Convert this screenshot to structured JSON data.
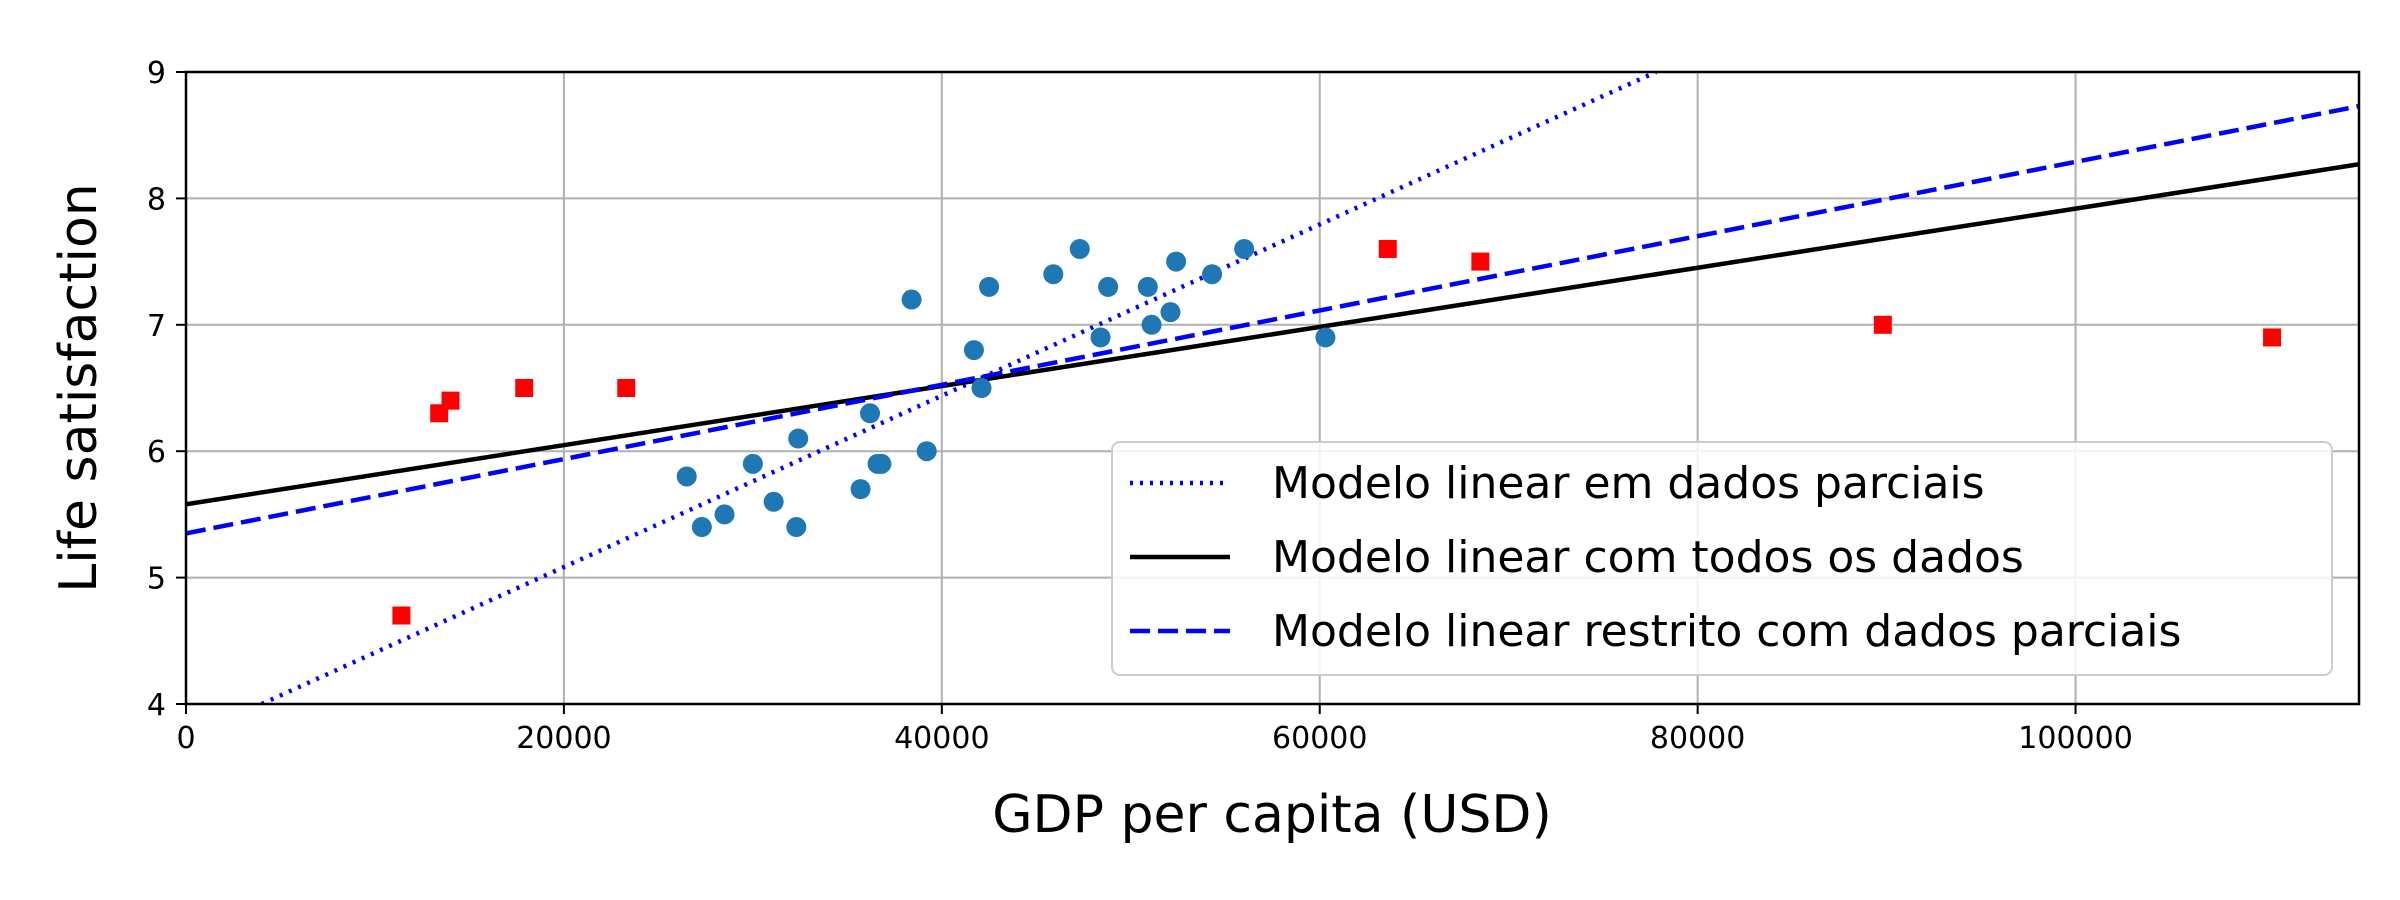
{
  "chart_data": {
    "type": "scatter",
    "title": "",
    "xlabel": "GDP per capita (USD)",
    "ylabel": "Life satisfaction",
    "xlim": [
      0,
      115000
    ],
    "ylim": [
      4,
      9
    ],
    "grid": true,
    "legend_position": "lower-right",
    "x_ticks": [
      {
        "value": 0,
        "label": "0"
      },
      {
        "value": 20000,
        "label": "20000"
      },
      {
        "value": 40000,
        "label": "40000"
      },
      {
        "value": 60000,
        "label": "60000"
      },
      {
        "value": 80000,
        "label": "80000"
      },
      {
        "value": 100000,
        "label": "100000"
      }
    ],
    "y_ticks": [
      {
        "value": 4,
        "label": "4"
      },
      {
        "value": 5,
        "label": "5"
      },
      {
        "value": 6,
        "label": "6"
      },
      {
        "value": 7,
        "label": "7"
      },
      {
        "value": 8,
        "label": "8"
      },
      {
        "value": 9,
        "label": "9"
      }
    ],
    "scatter_series": [
      {
        "marker": "circle",
        "color": "#1f77b4",
        "points": [
          [
            26500,
            5.8
          ],
          [
            27300,
            5.4
          ],
          [
            28500,
            5.5
          ],
          [
            30000,
            5.9
          ],
          [
            31100,
            5.6
          ],
          [
            32300,
            5.4
          ],
          [
            32400,
            6.1
          ],
          [
            35700,
            5.7
          ],
          [
            36200,
            6.3
          ],
          [
            36600,
            5.9
          ],
          [
            36800,
            5.9
          ],
          [
            38400,
            7.2
          ],
          [
            39200,
            6.0
          ],
          [
            41700,
            6.8
          ],
          [
            42100,
            6.5
          ],
          [
            42500,
            7.3
          ],
          [
            45900,
            7.4
          ],
          [
            47300,
            7.6
          ],
          [
            48400,
            6.9
          ],
          [
            48800,
            7.3
          ],
          [
            50900,
            7.3
          ],
          [
            51100,
            7.0
          ],
          [
            52100,
            7.1
          ],
          [
            52400,
            7.5
          ],
          [
            54300,
            7.4
          ],
          [
            56000,
            7.6
          ],
          [
            60300,
            6.9
          ]
        ]
      },
      {
        "marker": "square",
        "color": "#ff0000",
        "points": [
          [
            11400,
            4.7
          ],
          [
            13400,
            6.3
          ],
          [
            14000,
            6.4
          ],
          [
            17900,
            6.5
          ],
          [
            23300,
            6.5
          ],
          [
            63600,
            7.6
          ],
          [
            68500,
            7.5
          ],
          [
            89800,
            7.0
          ],
          [
            110400,
            6.9
          ]
        ]
      }
    ],
    "lines": [
      {
        "name": "Modelo linear em dados parciais",
        "color": "#0000ff",
        "style": "dotted",
        "x": [
          4000,
          77800
        ],
        "y": [
          4.0,
          9.0
        ]
      },
      {
        "name": "Modelo linear com todos os dados",
        "color": "#000000",
        "style": "solid",
        "x": [
          0,
          115000
        ],
        "y": [
          5.58,
          8.27
        ]
      },
      {
        "name": "Modelo linear restrito com dados parciais",
        "color": "#0000ff",
        "style": "dashed",
        "x": [
          0,
          115000
        ],
        "y": [
          5.35,
          8.73
        ]
      }
    ]
  }
}
